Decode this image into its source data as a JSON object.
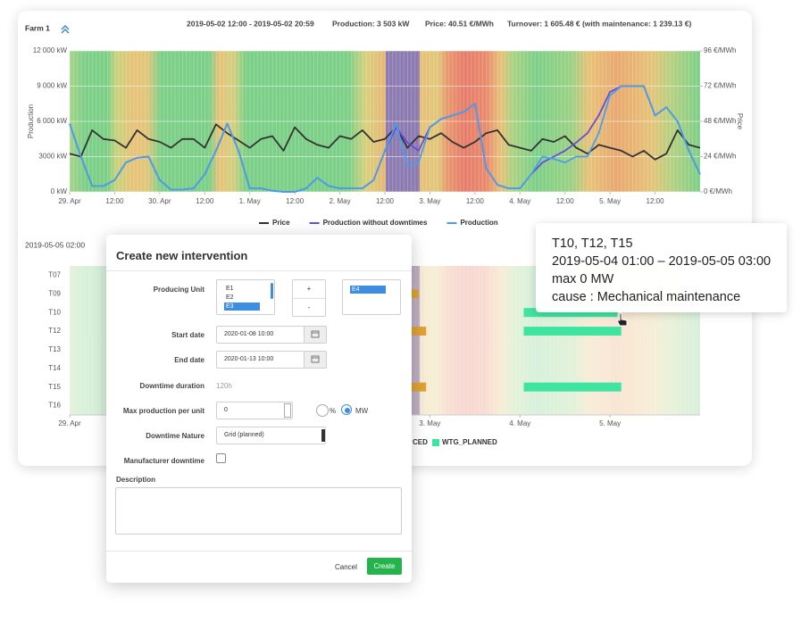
{
  "header": {
    "farm": "Farm 1",
    "period": "2019-05-02 12:00 - 2019-05-02 20:59",
    "production": "Production: 3 503 kW",
    "price": "Price: 40.51 €/MWh",
    "turnover": "Turnover: 1 605.48 € (with maintenance: 1 239.13 €)"
  },
  "chart_data": [
    {
      "type": "line",
      "ylabel": "Production",
      "y2label": "Price",
      "xlim": [
        0,
        168
      ],
      "xticks": [
        {
          "value": 0,
          "label": "29. Apr"
        },
        {
          "value": 12,
          "label": "12:00"
        },
        {
          "value": 24,
          "label": "30. Apr"
        },
        {
          "value": 36,
          "label": "12:00"
        },
        {
          "value": 48,
          "label": "1. May"
        },
        {
          "value": 60,
          "label": "12:00"
        },
        {
          "value": 72,
          "label": "2. May"
        },
        {
          "value": 84,
          "label": "12:00"
        },
        {
          "value": 96,
          "label": "3. May"
        },
        {
          "value": 108,
          "label": "12:00"
        },
        {
          "value": 120,
          "label": "4. May"
        },
        {
          "value": 132,
          "label": "12:00"
        },
        {
          "value": 144,
          "label": "5. May"
        },
        {
          "value": 156,
          "label": "12:00"
        }
      ],
      "ylim": [
        0,
        12000
      ],
      "yticks": [
        {
          "value": 0,
          "label": "0 kW"
        },
        {
          "value": 3000,
          "label": "3000 kW"
        },
        {
          "value": 6000,
          "label": "6 000 kW"
        },
        {
          "value": 9000,
          "label": "9 000 kW"
        },
        {
          "value": 12000,
          "label": "12 000 kW"
        }
      ],
      "y2lim": [
        0,
        96
      ],
      "y2ticks": [
        {
          "value": 0,
          "label": "0 €/MWh"
        },
        {
          "value": 24,
          "label": "24 €/MWh"
        },
        {
          "value": 48,
          "label": "48 €/MWh"
        },
        {
          "value": 72,
          "label": "72 €/MWh"
        },
        {
          "value": 96,
          "label": "96 €/MWh"
        }
      ],
      "grid": true,
      "legend": "bottom",
      "x": [
        0,
        3,
        6,
        9,
        12,
        15,
        18,
        21,
        24,
        27,
        30,
        33,
        36,
        39,
        42,
        45,
        48,
        51,
        54,
        57,
        60,
        63,
        66,
        69,
        72,
        75,
        78,
        81,
        84,
        87,
        90,
        93,
        96,
        99,
        102,
        105,
        108,
        111,
        114,
        117,
        120,
        123,
        126,
        129,
        132,
        135,
        138,
        141,
        144,
        147,
        150,
        153,
        156,
        159,
        162,
        165,
        168
      ],
      "series": [
        {
          "name": "Price",
          "color": "#333333",
          "axis": "y2",
          "values": [
            26,
            24,
            42,
            36,
            35,
            30,
            42,
            36,
            34,
            30,
            36,
            36,
            30,
            46,
            40,
            35,
            30,
            36,
            38,
            28,
            44,
            36,
            32,
            30,
            38,
            36,
            42,
            34,
            36,
            44,
            30,
            38,
            36,
            40,
            34,
            30,
            34,
            40,
            42,
            32,
            30,
            28,
            36,
            34,
            38,
            30,
            26,
            32,
            30,
            28,
            24,
            28,
            22,
            26,
            42,
            32,
            30
          ]
        },
        {
          "name": "Production without downtimes",
          "color": "#6a4bd6",
          "values": [
            5800,
            3000,
            500,
            500,
            1000,
            2500,
            2900,
            3000,
            1000,
            200,
            200,
            300,
            1500,
            3500,
            5800,
            3500,
            300,
            300,
            100,
            0,
            0,
            300,
            1200,
            500,
            300,
            300,
            300,
            1000,
            3500,
            5500,
            4200,
            3500,
            5500,
            6200,
            6500,
            6800,
            7500,
            2000,
            600,
            300,
            300,
            1500,
            2500,
            3000,
            3500,
            4200,
            5000,
            6500,
            8500,
            9000,
            9000,
            9000,
            6500,
            7200,
            6000,
            3500,
            1500
          ]
        },
        {
          "name": "Production",
          "color": "#4b9fea",
          "values": [
            5800,
            3000,
            500,
            500,
            1000,
            2500,
            2900,
            3000,
            1000,
            200,
            200,
            300,
            1500,
            3500,
            5800,
            3500,
            300,
            300,
            100,
            0,
            0,
            300,
            1200,
            500,
            300,
            300,
            300,
            1000,
            3500,
            5800,
            2200,
            2500,
            5500,
            6200,
            6500,
            6800,
            7500,
            2000,
            600,
            300,
            300,
            1500,
            3000,
            2800,
            2500,
            3000,
            3000,
            5000,
            8200,
            9000,
            9000,
            9000,
            6500,
            7200,
            6000,
            3500,
            1500
          ]
        }
      ]
    },
    {
      "type": "gantt",
      "title": "2019-05-05 02:00",
      "categories": [
        "T07",
        "T09",
        "T10",
        "T12",
        "T13",
        "T14",
        "T15",
        "T16"
      ],
      "xlim": [
        0,
        168
      ],
      "xticks": [
        {
          "value": 0,
          "label": "29. Apr"
        },
        {
          "value": 96,
          "label": "3. May"
        },
        {
          "value": 120,
          "label": "4. May"
        },
        {
          "value": 144,
          "label": "5. May"
        }
      ],
      "series": [
        {
          "name": "CED",
          "color": "#e0a233",
          "bars": [
            {
              "unit": "T09",
              "start": 90,
              "end": 93
            },
            {
              "unit": "T12",
              "start": 90,
              "end": 95
            },
            {
              "unit": "T15",
              "start": 90,
              "end": 95
            }
          ]
        },
        {
          "name": "WTG_PLANNED",
          "color": "#3ee4a0",
          "bars": [
            {
              "unit": "T10",
              "start": 121,
              "end": 146
            },
            {
              "unit": "T12",
              "start": 121,
              "end": 147
            },
            {
              "unit": "T15",
              "start": 121,
              "end": 147
            }
          ]
        }
      ]
    }
  ],
  "modal": {
    "title": "Create new intervention",
    "producing_unit": "Producing Unit",
    "available_units": [
      "E1",
      "E2",
      "E3"
    ],
    "add": "+",
    "remove": "-",
    "selected_units": [
      "E4"
    ],
    "start_date_label": "Start date",
    "start_date": "2020-01-08 10:00",
    "end_date_label": "End date",
    "end_date": "2020-01-13 10:00",
    "duration_label": "Downtime duration",
    "duration": "120h",
    "max_production_label": "Max production per unit",
    "max_production": "0",
    "unit_percent": "%",
    "unit_mw": "MW",
    "nature_label": "Downtime Nature",
    "nature": "Grid (planned)",
    "manufacturer_label": "Manufacturer downtime",
    "description_label": "Description",
    "cancel": "Cancel",
    "create": "Create"
  },
  "tooltip": {
    "units": "T10, T12, T15",
    "period": "2019-05-04 01:00 – 2019-05-05 03:00",
    "max": "max 0 MW",
    "cause": "cause : Mechanical maintenance"
  }
}
